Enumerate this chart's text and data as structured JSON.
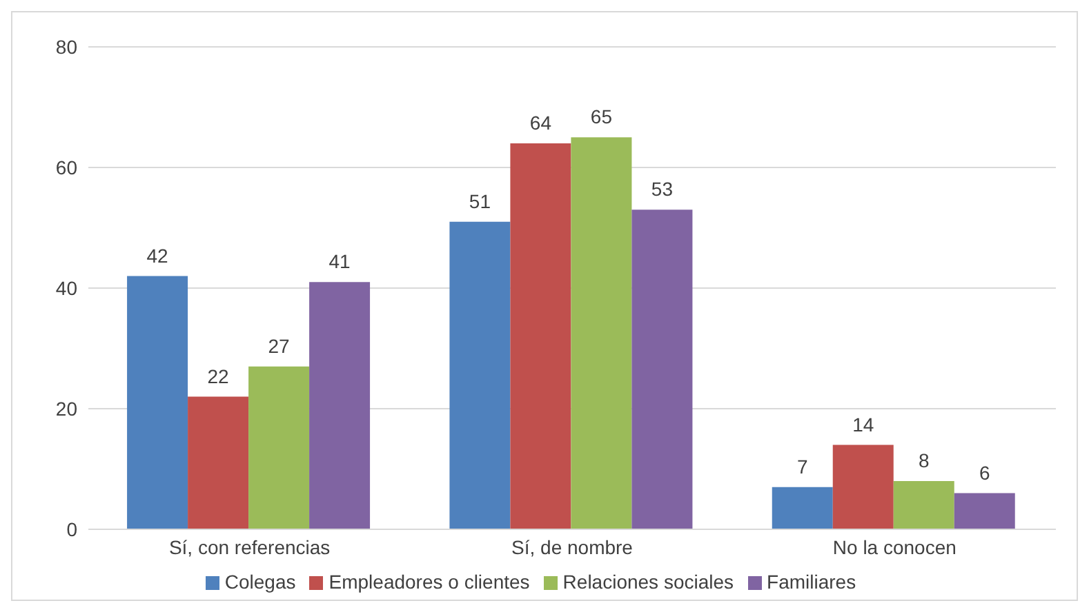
{
  "chart_data": {
    "type": "bar",
    "categories": [
      "Sí, con referencias",
      "Sí, de nombre",
      "No la conocen"
    ],
    "series": [
      {
        "name": "Colegas",
        "color": "#4f81bd",
        "values": [
          42,
          51,
          7
        ]
      },
      {
        "name": "Empleadores o clientes",
        "color": "#c0504d",
        "values": [
          22,
          64,
          14
        ]
      },
      {
        "name": "Relaciones sociales",
        "color": "#9bbb59",
        "values": [
          27,
          65,
          8
        ]
      },
      {
        "name": "Familiares",
        "color": "#8064a2",
        "values": [
          41,
          53,
          6
        ]
      }
    ],
    "ylim": [
      0,
      80
    ],
    "yticks": [
      0,
      20,
      40,
      60,
      80
    ],
    "grid": "y",
    "legend": "bottom",
    "data_labels": true
  }
}
